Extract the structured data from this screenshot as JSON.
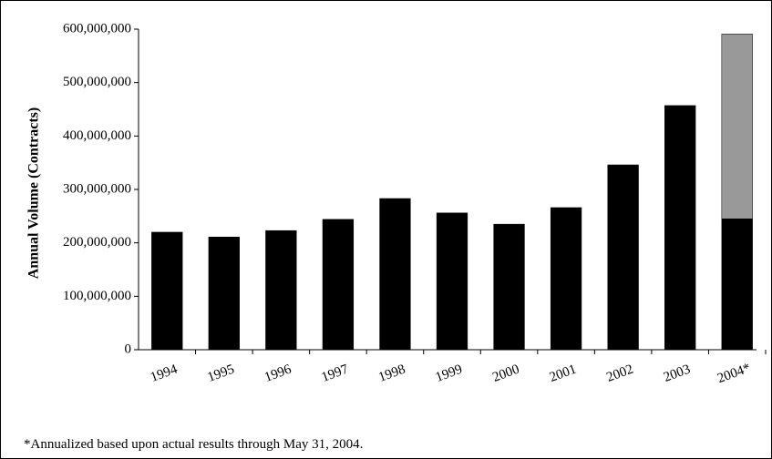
{
  "chart_data": {
    "type": "stacked_bar",
    "y_label": "Annual Volume (Contracts)",
    "categories": [
      "1994",
      "1995",
      "1996",
      "1997",
      "1998",
      "1999",
      "2000",
      "2001",
      "2002",
      "2003",
      "2004*"
    ],
    "series": [
      {
        "color": "#000000",
        "values": [
          220000000,
          211000000,
          223000000,
          244000000,
          283000000,
          256000000,
          235000000,
          266000000,
          346000000,
          457000000,
          245000000
        ]
      },
      {
        "color": "#999999",
        "values": [
          null,
          null,
          null,
          null,
          null,
          null,
          null,
          null,
          null,
          null,
          346000000
        ]
      }
    ],
    "ylim": [
      0,
      600000000
    ],
    "yticks": [
      0,
      {
        "value": 100000000,
        "label": "100,000,000"
      },
      {
        "value": 200000000,
        "label": "200,000,000"
      },
      {
        "value": 300000000,
        "label": "300,000,000"
      },
      {
        "value": 400000000,
        "label": "400,000,000"
      },
      {
        "value": 500000000,
        "label": "500,000,000"
      },
      {
        "value": 600000000,
        "label": "600,000,000"
      }
    ],
    "footnote": "*Annualized based upon actual results through May 31, 2004."
  }
}
